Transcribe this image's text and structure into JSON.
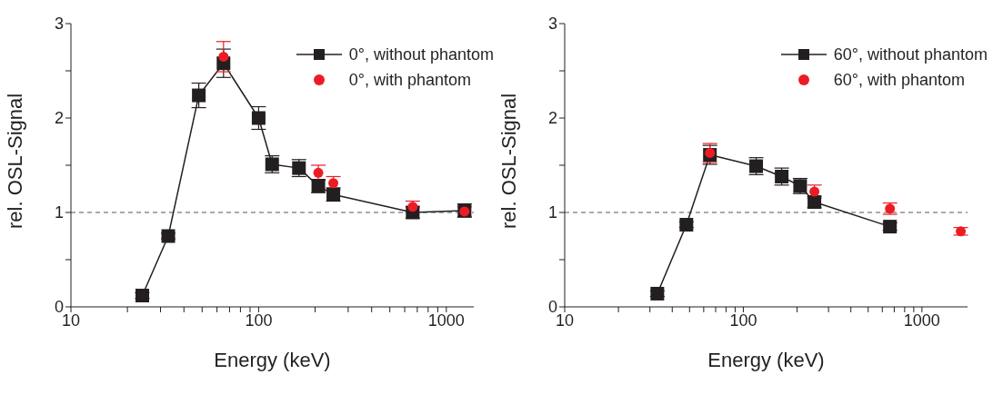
{
  "chart_data": [
    {
      "type": "line",
      "xlabel": "Energy (keV)",
      "ylabel": "rel. OSL-Signal",
      "log": "x",
      "xlim": [
        10,
        1400
      ],
      "ylim": [
        0,
        3
      ],
      "xticks": [
        10,
        {
          "value": 20,
          "label": null
        },
        {
          "value": 30,
          "label": null
        },
        {
          "value": 40,
          "label": null
        },
        {
          "value": 50,
          "label": null
        },
        {
          "value": 60,
          "label": null
        },
        {
          "value": 70,
          "label": null
        },
        {
          "value": 80,
          "label": null
        },
        {
          "value": 90,
          "label": null
        },
        100,
        {
          "value": 200,
          "label": null
        },
        {
          "value": 300,
          "label": null
        },
        {
          "value": 400,
          "label": null
        },
        {
          "value": 500,
          "label": null
        },
        {
          "value": 600,
          "label": null
        },
        {
          "value": 700,
          "label": null
        },
        {
          "value": 800,
          "label": null
        },
        {
          "value": 900,
          "label": null
        },
        1000
      ],
      "yticks": [
        0,
        {
          "value": 0.5,
          "label": null
        },
        1,
        {
          "value": 1.5,
          "label": null
        },
        2,
        {
          "value": 2.5,
          "label": null
        },
        3
      ],
      "grid": false,
      "legend": "top right",
      "ref_lines": [
        {
          "axis": "y",
          "value": 1,
          "color": "#555555",
          "line_style": "dashed"
        }
      ],
      "series": [
        {
          "name": "0°, without phantom",
          "type": "line",
          "marker": "square",
          "color": "#231f20",
          "x": [
            24,
            33,
            48,
            65,
            100,
            118,
            164,
            208,
            250,
            662,
            1250
          ],
          "values": [
            0.12,
            0.75,
            2.24,
            2.58,
            2.0,
            1.51,
            1.47,
            1.28,
            1.19,
            1.0,
            1.02
          ],
          "errors": [
            0.03,
            0.03,
            0.13,
            0.15,
            0.12,
            0.09,
            0.09,
            0.07,
            0.07,
            0.06,
            0.07
          ]
        },
        {
          "name": "0°, with phantom",
          "type": "scatter",
          "marker": "circle",
          "color": "#ed1c24",
          "x": [
            65,
            208,
            250,
            662,
            1250
          ],
          "values": [
            2.65,
            1.42,
            1.31,
            1.06,
            1.01
          ],
          "errors": [
            0.16,
            0.08,
            0.07,
            0.06,
            0.05
          ]
        }
      ]
    },
    {
      "type": "line",
      "xlabel": "Energy (keV)",
      "ylabel": "rel. OSL-Signal",
      "log": "x",
      "xlim": [
        10,
        1800
      ],
      "ylim": [
        0,
        3
      ],
      "xticks": [
        10,
        {
          "value": 20,
          "label": null
        },
        {
          "value": 30,
          "label": null
        },
        {
          "value": 40,
          "label": null
        },
        {
          "value": 50,
          "label": null
        },
        {
          "value": 60,
          "label": null
        },
        {
          "value": 70,
          "label": null
        },
        {
          "value": 80,
          "label": null
        },
        {
          "value": 90,
          "label": null
        },
        100,
        {
          "value": 200,
          "label": null
        },
        {
          "value": 300,
          "label": null
        },
        {
          "value": 400,
          "label": null
        },
        {
          "value": 500,
          "label": null
        },
        {
          "value": 600,
          "label": null
        },
        {
          "value": 700,
          "label": null
        },
        {
          "value": 800,
          "label": null
        },
        {
          "value": 900,
          "label": null
        },
        1000
      ],
      "yticks": [
        0,
        {
          "value": 0.5,
          "label": null
        },
        1,
        {
          "value": 1.5,
          "label": null
        },
        2,
        {
          "value": 2.5,
          "label": null
        },
        3
      ],
      "grid": false,
      "legend": "top right",
      "ref_lines": [
        {
          "axis": "y",
          "value": 1,
          "color": "#555555",
          "line_style": "dashed"
        }
      ],
      "series": [
        {
          "name": "60°, without phantom",
          "type": "line",
          "marker": "square",
          "color": "#231f20",
          "x": [
            33,
            48,
            65,
            118,
            164,
            208,
            250,
            662
          ],
          "values": [
            0.14,
            0.87,
            1.61,
            1.49,
            1.38,
            1.28,
            1.11,
            0.85
          ],
          "errors": [
            0.03,
            0.03,
            0.1,
            0.09,
            0.09,
            0.08,
            0.06,
            0.04
          ]
        },
        {
          "name": "60°, with phantom",
          "type": "scatter",
          "marker": "circle",
          "color": "#ed1c24",
          "x": [
            65,
            250,
            662,
            1650
          ],
          "values": [
            1.63,
            1.22,
            1.04,
            0.8
          ],
          "errors": [
            0.1,
            0.07,
            0.06,
            0.04
          ]
        }
      ]
    }
  ]
}
